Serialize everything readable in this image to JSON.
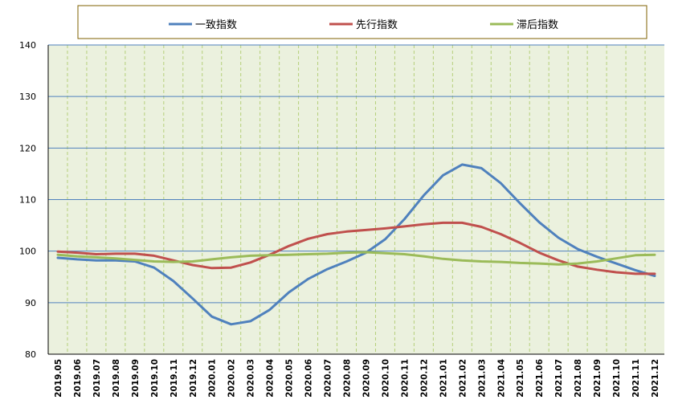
{
  "chart_data": {
    "type": "line",
    "title": "",
    "xlabel": "",
    "ylabel": "",
    "ylim": [
      80,
      140
    ],
    "yticks": [
      80,
      90,
      100,
      110,
      120,
      130,
      140
    ],
    "grid": true,
    "legend_position": "top",
    "categories": [
      "2019.05",
      "2019.06",
      "2019.07",
      "2019.08",
      "2019.09",
      "2019.10",
      "2019.11",
      "2019.12",
      "2020.01",
      "2020.02",
      "2020.03",
      "2020.04",
      "2020.05",
      "2020.06",
      "2020.07",
      "2020.08",
      "2020.09",
      "2020.10",
      "2020.11",
      "2020.12",
      "2021.01",
      "2021.02",
      "2021.03",
      "2021.04",
      "2021.05",
      "2021.06",
      "2021.07",
      "2021.08",
      "2021.09",
      "2021.10",
      "2021.11",
      "2021.12"
    ],
    "series": [
      {
        "name": "一致指数",
        "color": "#4f81bd",
        "values": [
          98.7,
          98.4,
          98.2,
          98.2,
          98.0,
          96.8,
          94.2,
          90.8,
          87.3,
          85.8,
          86.4,
          88.6,
          92.0,
          94.6,
          96.5,
          98.0,
          99.7,
          102.3,
          106.2,
          110.8,
          114.7,
          116.8,
          116.1,
          113.2,
          109.3,
          105.6,
          102.6,
          100.4,
          98.9,
          97.6,
          96.3,
          95.2
        ]
      },
      {
        "name": "先行指数",
        "color": "#c0504d",
        "values": [
          99.9,
          99.7,
          99.4,
          99.5,
          99.5,
          99.1,
          98.2,
          97.3,
          96.7,
          96.8,
          97.8,
          99.3,
          101.0,
          102.4,
          103.3,
          103.8,
          104.1,
          104.4,
          104.8,
          105.2,
          105.5,
          105.5,
          104.7,
          103.3,
          101.6,
          99.7,
          98.2,
          97.0,
          96.4,
          95.9,
          95.6,
          95.6
        ]
      },
      {
        "name": "滞后指数",
        "color": "#9bbb59",
        "values": [
          99.3,
          99.0,
          98.8,
          98.6,
          98.3,
          98.0,
          97.9,
          98.0,
          98.4,
          98.8,
          99.1,
          99.2,
          99.3,
          99.4,
          99.5,
          99.7,
          99.8,
          99.6,
          99.4,
          99.0,
          98.5,
          98.2,
          98.0,
          97.9,
          97.7,
          97.6,
          97.4,
          97.6,
          98.0,
          98.6,
          99.2,
          99.3
        ]
      }
    ]
  }
}
